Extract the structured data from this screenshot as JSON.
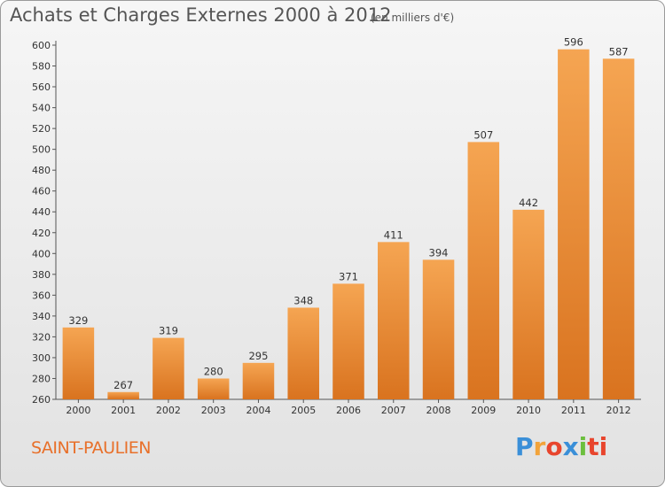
{
  "header": {
    "title": "Achats et Charges Externes 2000 à 2012",
    "subtitle": "(en milliers d'€)"
  },
  "footer": {
    "commune": "SAINT-PAULIEN",
    "logo_letters": [
      "P",
      "r",
      "o",
      "x",
      "i",
      "ti"
    ]
  },
  "colors": {
    "bar_light": "#f5a552",
    "bar_dark": "#d9731f",
    "commune_text": "#e8702a"
  },
  "chart_data": {
    "type": "bar",
    "categories": [
      "2000",
      "2001",
      "2002",
      "2003",
      "2004",
      "2005",
      "2006",
      "2007",
      "2008",
      "2009",
      "2010",
      "2011",
      "2012"
    ],
    "values": [
      329,
      267,
      319,
      280,
      295,
      348,
      371,
      411,
      394,
      507,
      442,
      596,
      587
    ],
    "title": "Achats et Charges Externes 2000 à 2012",
    "ylim": [
      260,
      600
    ],
    "yticks": [
      260,
      280,
      300,
      320,
      340,
      360,
      380,
      400,
      420,
      440,
      460,
      480,
      500,
      520,
      540,
      560,
      580,
      600
    ],
    "grid": false,
    "data_labels": true
  }
}
